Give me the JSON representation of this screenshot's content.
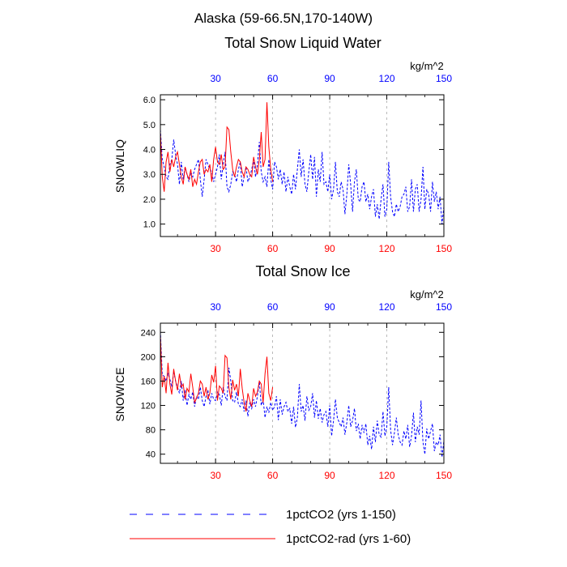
{
  "figure": {
    "title": "Alaska (59-66.5N,170-140W)",
    "legend": [
      {
        "label": "1pctCO2 (yrs 1-150)",
        "color": "#0000ff",
        "dash": "dashed"
      },
      {
        "label": "1pctCO2-rad (yrs 1-60)",
        "color": "#ff0000",
        "dash": "solid"
      }
    ]
  },
  "chart_data": [
    {
      "type": "line",
      "title": "Total Snow Liquid Water",
      "units": "kg/m^2",
      "ylabel": "SNOWLIQ",
      "xlim": [
        1,
        150
      ],
      "ylim": [
        0.5,
        6.2
      ],
      "x_ticks": [
        30,
        60,
        90,
        120,
        150
      ],
      "y_ticks": [
        "1.0",
        "2.0",
        "3.0",
        "4.0",
        "5.0",
        "6.0"
      ],
      "grid": "x-dashed",
      "series": [
        {
          "name": "1pctCO2 (yrs 1-150)",
          "color": "#0000ff",
          "dash": "dashed",
          "x_start": 1,
          "values": [
            4.8,
            3.6,
            3.3,
            2.9,
            2.8,
            3.4,
            3.6,
            4.4,
            3.8,
            3.4,
            2.6,
            3.5,
            2.8,
            3.3,
            3.0,
            2.7,
            3.1,
            2.9,
            3.2,
            3.4,
            3.6,
            2.8,
            2.1,
            2.8,
            3.6,
            3.4,
            3.2,
            3.1,
            2.7,
            3.0,
            3.3,
            3.8,
            2.8,
            3.4,
            3.9,
            2.5,
            2.3,
            2.6,
            3.1,
            3.0,
            2.7,
            3.2,
            3.5,
            2.5,
            2.9,
            3.3,
            2.7,
            2.9,
            3.2,
            3.6,
            2.9,
            3.4,
            4.3,
            3.1,
            2.7,
            2.9,
            2.5,
            3.6,
            2.8,
            2.4,
            3.5,
            3.3,
            2.8,
            3.2,
            2.6,
            3.1,
            2.3,
            2.9,
            2.5,
            2.2,
            3.0,
            2.4,
            3.2,
            4.0,
            2.9,
            3.6,
            2.6,
            2.3,
            3.1,
            3.8,
            2.8,
            3.7,
            2.1,
            3.2,
            2.7,
            3.9,
            2.6,
            2.7,
            2.3,
            3.0,
            2.0,
            2.4,
            3.5,
            2.3,
            2.1,
            2.7,
            2.4,
            1.4,
            2.2,
            3.4,
            2.6,
            1.5,
            2.7,
            3.2,
            2.0,
            1.9,
            2.5,
            2.7,
            1.9,
            2.2,
            1.6,
            2.1,
            2.4,
            1.3,
            1.8,
            1.2,
            2.0,
            2.6,
            1.3,
            1.6,
            3.5,
            2.1,
            1.5,
            1.3,
            1.8,
            1.5,
            1.7,
            2.1,
            2.2,
            2.5,
            1.5,
            1.7,
            2.8,
            1.5,
            2.4,
            2.6,
            1.5,
            2.0,
            3.3,
            1.6,
            2.4,
            2.2,
            1.5,
            2.7,
            1.9,
            2.3,
            1.6,
            2.1,
            1.0,
            1.7
          ]
        },
        {
          "name": "1pctCO2-rad (yrs 1-60)",
          "color": "#ff0000",
          "dash": "solid",
          "x_start": 1,
          "values": [
            4.7,
            2.9,
            2.3,
            3.5,
            3.9,
            3.1,
            3.6,
            3.3,
            3.7,
            3.9,
            3.4,
            2.9,
            2.6,
            3.3,
            3.0,
            2.8,
            3.2,
            2.5,
            2.8,
            2.6,
            3.1,
            3.5,
            3.6,
            3.0,
            3.2,
            3.1,
            3.4,
            2.7,
            3.6,
            4.1,
            3.5,
            3.4,
            3.8,
            3.2,
            3.3,
            4.9,
            4.8,
            3.9,
            3.2,
            2.9,
            3.3,
            3.6,
            3.5,
            3.1,
            2.9,
            3.3,
            3.2,
            3.0,
            2.9,
            3.7,
            3.3,
            3.0,
            3.6,
            4.7,
            3.3,
            3.6,
            5.9,
            4.1,
            3.2,
            2.7
          ]
        }
      ]
    },
    {
      "type": "line",
      "title": "Total Snow Ice",
      "units": "kg/m^2",
      "ylabel": "SNOWICE",
      "xlim": [
        1,
        150
      ],
      "ylim": [
        25,
        255
      ],
      "x_ticks": [
        30,
        60,
        90,
        120,
        150
      ],
      "y_ticks": [
        "40",
        "80",
        "120",
        "160",
        "200",
        "240"
      ],
      "grid": "x-dashed",
      "series": [
        {
          "name": "1pctCO2 (yrs 1-150)",
          "color": "#0000ff",
          "dash": "dashed",
          "x_start": 1,
          "values": [
            242,
            170,
            168,
            160,
            172,
            163,
            150,
            176,
            160,
            150,
            140,
            160,
            128,
            145,
            120,
            138,
            130,
            142,
            118,
            135,
            130,
            150,
            128,
            118,
            135,
            145,
            122,
            140,
            130,
            128,
            142,
            138,
            120,
            150,
            135,
            128,
            182,
            160,
            128,
            125,
            142,
            122,
            118,
            130,
            110,
            128,
            102,
            125,
            115,
            130,
            118,
            135,
            160,
            120,
            130,
            100,
            118,
            108,
            125,
            112,
            118,
            135,
            96,
            130,
            105,
            118,
            125,
            110,
            115,
            90,
            118,
            84,
            100,
            155,
            110,
            120,
            95,
            135,
            112,
            118,
            140,
            100,
            128,
            98,
            115,
            92,
            105,
            110,
            85,
            120,
            70,
            95,
            130,
            100,
            92,
            85,
            100,
            72,
            92,
            120,
            85,
            95,
            115,
            78,
            90,
            65,
            88,
            75,
            90,
            55,
            70,
            48,
            85,
            60,
            95,
            72,
            68,
            110,
            70,
            85,
            150,
            80,
            55,
            75,
            100,
            72,
            60,
            55,
            78,
            65,
            88,
            52,
            70,
            108,
            60,
            85,
            72,
            128,
            60,
            40,
            82,
            65,
            78,
            90,
            45,
            60,
            55,
            72,
            35,
            62
          ]
        },
        {
          "name": "1pctCO2-rad (yrs 1-60)",
          "color": "#ff0000",
          "dash": "solid",
          "x_start": 1,
          "values": [
            235,
            150,
            168,
            140,
            190,
            155,
            138,
            180,
            160,
            145,
            172,
            150,
            155,
            130,
            148,
            142,
            172,
            150,
            125,
            132,
            140,
            160,
            155,
            135,
            150,
            130,
            140,
            170,
            158,
            185,
            128,
            152,
            148,
            140,
            202,
            198,
            150,
            130,
            162,
            145,
            155,
            135,
            180,
            148,
            125,
            110,
            140,
            128,
            118,
            148,
            135,
            142,
            160,
            155,
            125,
            172,
            200,
            140,
            128,
            150
          ]
        }
      ]
    }
  ]
}
